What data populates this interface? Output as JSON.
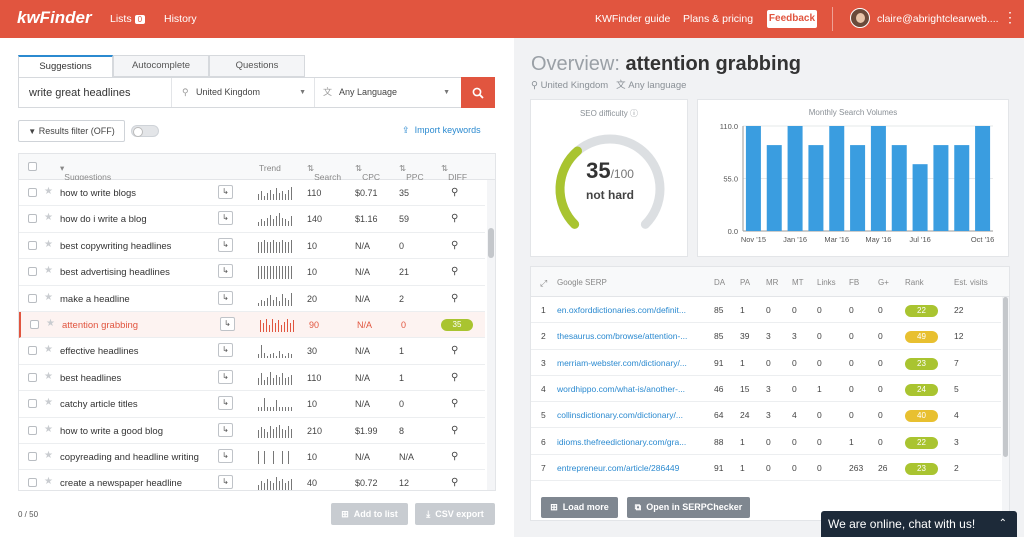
{
  "topbar": {
    "logo": "kwFinder",
    "nav_lists": "Lists",
    "lists_count": "0",
    "nav_history": "History",
    "guide": "KWFinder guide",
    "plans": "Plans & pricing",
    "feedback": "Feedback",
    "user": "claire@abrightclearweb...."
  },
  "search": {
    "tabs": [
      "Suggestions",
      "Autocomplete",
      "Questions"
    ],
    "query": "write great headlines",
    "location": "United Kingdom",
    "language": "Any Language"
  },
  "filter": {
    "label": "Results filter (OFF)",
    "import": "Import keywords"
  },
  "kw_table": {
    "headers": [
      "Suggestions",
      "Trend",
      "Search",
      "CPC",
      "PPC",
      "DIFF"
    ],
    "rows": [
      {
        "keyword": "how to write blogs",
        "search": "110",
        "cpc": "$0.71",
        "ppc": "35",
        "trend": [
          4,
          6,
          3,
          5,
          7,
          4,
          8,
          5,
          6,
          4,
          7,
          9
        ]
      },
      {
        "keyword": "how do i write a blog",
        "search": "140",
        "cpc": "$1.16",
        "ppc": "59",
        "trend": [
          3,
          5,
          4,
          6,
          8,
          5,
          7,
          9,
          6,
          5,
          4,
          7
        ]
      },
      {
        "keyword": "best copywriting headlines",
        "search": "10",
        "cpc": "N/A",
        "ppc": "0",
        "trend": [
          5,
          5,
          6,
          5,
          5,
          6,
          5,
          5,
          6,
          5,
          5,
          6
        ]
      },
      {
        "keyword": "best advertising headlines",
        "search": "10",
        "cpc": "N/A",
        "ppc": "21",
        "trend": [
          6,
          6,
          6,
          6,
          6,
          6,
          6,
          6,
          6,
          6,
          6,
          6
        ]
      },
      {
        "keyword": "make a headline",
        "search": "20",
        "cpc": "N/A",
        "ppc": "2",
        "trend": [
          2,
          4,
          3,
          5,
          7,
          4,
          6,
          3,
          8,
          5,
          4,
          9
        ]
      },
      {
        "keyword": "attention grabbing",
        "search": "90",
        "cpc": "N/A",
        "ppc": "0",
        "diff": "35",
        "selected": true,
        "trend": [
          8,
          6,
          9,
          5,
          9,
          6,
          8,
          5,
          7,
          9,
          6,
          8
        ]
      },
      {
        "keyword": "effective headlines",
        "search": "30",
        "cpc": "N/A",
        "ppc": "1",
        "trend": [
          3,
          9,
          4,
          2,
          3,
          4,
          2,
          5,
          3,
          2,
          4,
          3
        ]
      },
      {
        "keyword": "best headlines",
        "search": "110",
        "cpc": "N/A",
        "ppc": "1",
        "trend": [
          4,
          7,
          3,
          5,
          8,
          4,
          6,
          5,
          7,
          4,
          5,
          6
        ]
      },
      {
        "keyword": "catchy article titles",
        "search": "10",
        "cpc": "N/A",
        "ppc": "0",
        "trend": [
          2,
          2,
          6,
          2,
          2,
          2,
          5,
          2,
          2,
          2,
          2,
          2
        ]
      },
      {
        "keyword": "how to write a good blog",
        "search": "210",
        "cpc": "$1.99",
        "ppc": "8",
        "trend": [
          5,
          7,
          6,
          4,
          8,
          6,
          7,
          9,
          6,
          5,
          8,
          6
        ]
      },
      {
        "keyword": "copyreading and headline writing",
        "search": "10",
        "cpc": "N/A",
        "ppc": "N/A",
        "trend": [
          7,
          0,
          7,
          0,
          0,
          7,
          0,
          0,
          7,
          0,
          7,
          0
        ]
      },
      {
        "keyword": "create a newspaper headline",
        "search": "40",
        "cpc": "$0.72",
        "ppc": "12",
        "trend": [
          3,
          5,
          4,
          6,
          5,
          4,
          7,
          5,
          6,
          4,
          5,
          6
        ]
      }
    ]
  },
  "footer_left": {
    "count": "0 / 50",
    "add_to_list": "Add to list",
    "csv_export": "CSV export"
  },
  "overview": {
    "label": "Overview:",
    "keyword": "attention grabbing",
    "location": "United Kingdom",
    "language": "Any language"
  },
  "seo": {
    "title": "SEO difficulty",
    "value": 35,
    "max": "/100",
    "verdict": "not hard",
    "color": "#a9c430"
  },
  "chart_data": {
    "type": "bar",
    "title": "Monthly Search Volumes",
    "categories": [
      "Nov '15",
      "Dec '15",
      "Jan '16",
      "Feb '16",
      "Mar '16",
      "Apr '16",
      "May '16",
      "Jun '16",
      "Jul '16",
      "Aug '16",
      "Sep '16",
      "Oct '16"
    ],
    "values": [
      110,
      90,
      110,
      90,
      110,
      90,
      110,
      90,
      70,
      90,
      90,
      110
    ],
    "x_tick_labels": [
      "Nov '15",
      "Jan '16",
      "Mar '16",
      "May '16",
      "Jul '16",
      "Oct '16"
    ],
    "y_ticks": [
      "0.0",
      "55.0",
      "110.0"
    ],
    "ylim": [
      0,
      110
    ],
    "color": "#3a9de0"
  },
  "serp": {
    "headers": [
      "Google SERP",
      "DA",
      "PA",
      "MR",
      "MT",
      "Links",
      "FB",
      "G+",
      "Rank",
      "Est. visits"
    ],
    "rows": [
      {
        "n": "1",
        "url": "en.oxforddictionaries.com/definit...",
        "da": "85",
        "pa": "1",
        "mr": "0",
        "mt": "0",
        "links": "0",
        "fb": "0",
        "gp": "0",
        "rank": "22",
        "rank_color": "#a9c430",
        "visits": "22"
      },
      {
        "n": "2",
        "url": "thesaurus.com/browse/attention-...",
        "da": "85",
        "pa": "39",
        "mr": "3",
        "mt": "3",
        "links": "0",
        "fb": "0",
        "gp": "0",
        "rank": "49",
        "rank_color": "#e8c030",
        "visits": "12"
      },
      {
        "n": "3",
        "url": "merriam-webster.com/dictionary/...",
        "da": "91",
        "pa": "1",
        "mr": "0",
        "mt": "0",
        "links": "0",
        "fb": "0",
        "gp": "0",
        "rank": "23",
        "rank_color": "#a9c430",
        "visits": "7"
      },
      {
        "n": "4",
        "url": "wordhippo.com/what-is/another-...",
        "da": "46",
        "pa": "15",
        "mr": "3",
        "mt": "0",
        "links": "1",
        "fb": "0",
        "gp": "0",
        "rank": "24",
        "rank_color": "#a9c430",
        "visits": "5"
      },
      {
        "n": "5",
        "url": "collinsdictionary.com/dictionary/...",
        "da": "64",
        "pa": "24",
        "mr": "3",
        "mt": "4",
        "links": "0",
        "fb": "0",
        "gp": "0",
        "rank": "40",
        "rank_color": "#e8c030",
        "visits": "4"
      },
      {
        "n": "6",
        "url": "idioms.thefreedictionary.com/gra...",
        "da": "88",
        "pa": "1",
        "mr": "0",
        "mt": "0",
        "links": "0",
        "fb": "1",
        "gp": "0",
        "rank": "22",
        "rank_color": "#a9c430",
        "visits": "3"
      },
      {
        "n": "7",
        "url": "entrepreneur.com/article/286449",
        "da": "91",
        "pa": "1",
        "mr": "0",
        "mt": "0",
        "links": "0",
        "fb": "263",
        "gp": "26",
        "rank": "23",
        "rank_color": "#a9c430",
        "visits": "2"
      }
    ],
    "load_more": "Load more",
    "open_serp": "Open in SERPChecker"
  },
  "chat": {
    "label": "We are online, chat with us!"
  },
  "icons": [
    "search-icon",
    "location-pin-icon",
    "language-icon",
    "filter-icon",
    "upload-icon",
    "star-icon",
    "expand-icon",
    "magnifier-icon",
    "external-link-icon",
    "plus-icon",
    "download-icon",
    "chevron-up-icon",
    "kebab-icon"
  ]
}
